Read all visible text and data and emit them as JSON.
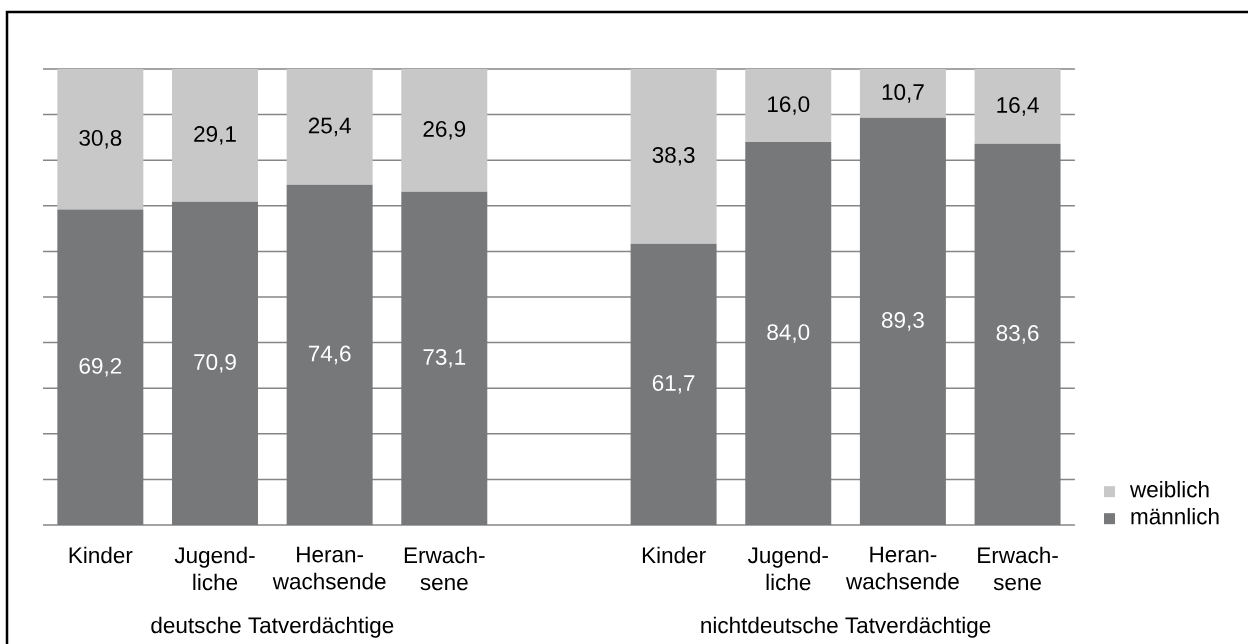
{
  "chart_data": {
    "type": "bar",
    "stacked": true,
    "categories": [
      "Kinder",
      "Jugend- liche",
      "Heran- wachsende",
      "Erwach- sene",
      null,
      "Kinder",
      "Jugend- liche",
      "Heran- wachsende",
      "Erwach- sene"
    ],
    "series": [
      {
        "name": "männlich",
        "color": "#77787a",
        "values": [
          69.2,
          70.9,
          74.6,
          73.1,
          null,
          61.7,
          84.0,
          89.3,
          83.6
        ],
        "value_labels": [
          "69,2",
          "70,9",
          "74,6",
          "73,1",
          null,
          "61,7",
          "84,0",
          "89,3",
          "83,6"
        ]
      },
      {
        "name": "weiblich",
        "color": "#c8c8c8",
        "values": [
          30.8,
          29.1,
          25.4,
          26.9,
          null,
          38.3,
          16.0,
          10.7,
          16.4
        ],
        "value_labels": [
          "30,8",
          "29,1",
          "25,4",
          "26,9",
          null,
          "38,3",
          "16,0",
          "10,7",
          "16,4"
        ]
      }
    ],
    "ylim": [
      0,
      100
    ],
    "yticks": [
      {
        "value": 0,
        "label": null
      },
      {
        "value": 10,
        "label": null
      },
      {
        "value": 20,
        "label": null
      },
      {
        "value": 30,
        "label": null
      },
      {
        "value": 40,
        "label": null
      },
      {
        "value": 50,
        "label": null
      },
      {
        "value": 60,
        "label": null
      },
      {
        "value": 70,
        "label": null
      },
      {
        "value": 80,
        "label": null
      },
      {
        "value": 90,
        "label": null
      },
      {
        "value": 100,
        "label": null
      }
    ],
    "grid": "y",
    "legend": "right",
    "tick_labels": "x",
    "annotations": [
      "deutsche Tatverdächtige",
      "nichtdeutsche Tatverdächtige"
    ]
  }
}
